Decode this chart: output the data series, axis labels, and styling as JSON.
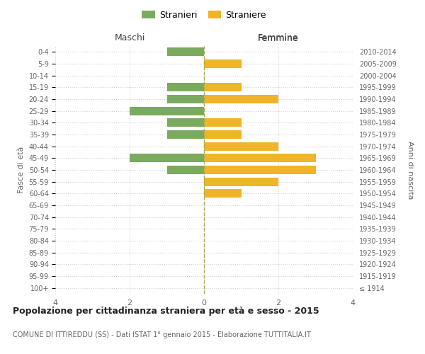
{
  "age_groups": [
    "100+",
    "95-99",
    "90-94",
    "85-89",
    "80-84",
    "75-79",
    "70-74",
    "65-69",
    "60-64",
    "55-59",
    "50-54",
    "45-49",
    "40-44",
    "35-39",
    "30-34",
    "25-29",
    "20-24",
    "15-19",
    "10-14",
    "5-9",
    "0-4"
  ],
  "birth_years": [
    "≤ 1914",
    "1915-1919",
    "1920-1924",
    "1925-1929",
    "1930-1934",
    "1935-1939",
    "1940-1944",
    "1945-1949",
    "1950-1954",
    "1955-1959",
    "1960-1964",
    "1965-1969",
    "1970-1974",
    "1975-1979",
    "1980-1984",
    "1985-1989",
    "1990-1994",
    "1995-1999",
    "2000-2004",
    "2005-2009",
    "2010-2014"
  ],
  "maschi": [
    0,
    0,
    0,
    0,
    0,
    0,
    0,
    0,
    0,
    0,
    1,
    2,
    0,
    1,
    1,
    2,
    1,
    1,
    0,
    0,
    1
  ],
  "femmine": [
    0,
    0,
    0,
    0,
    0,
    0,
    0,
    0,
    1,
    2,
    3,
    3,
    2,
    1,
    1,
    0,
    2,
    1,
    0,
    1,
    0
  ],
  "color_maschi": "#7aaa5d",
  "color_femmine": "#f0b429",
  "title": "Popolazione per cittadinanza straniera per età e sesso - 2015",
  "subtitle": "COMUNE DI ITTIREDDU (SS) - Dati ISTAT 1° gennaio 2015 - Elaborazione TUTTITALIA.IT",
  "xlabel_left": "Maschi",
  "xlabel_right": "Femmine",
  "ylabel_left": "Fasce di età",
  "ylabel_right": "Anni di nascita",
  "legend_maschi": "Stranieri",
  "legend_femmine": "Straniere",
  "xlim": 4,
  "background_color": "#ffffff",
  "grid_color": "#d0d0d0",
  "bar_height": 0.72,
  "center_line_color": "#aaa855",
  "center_line_style": "--"
}
